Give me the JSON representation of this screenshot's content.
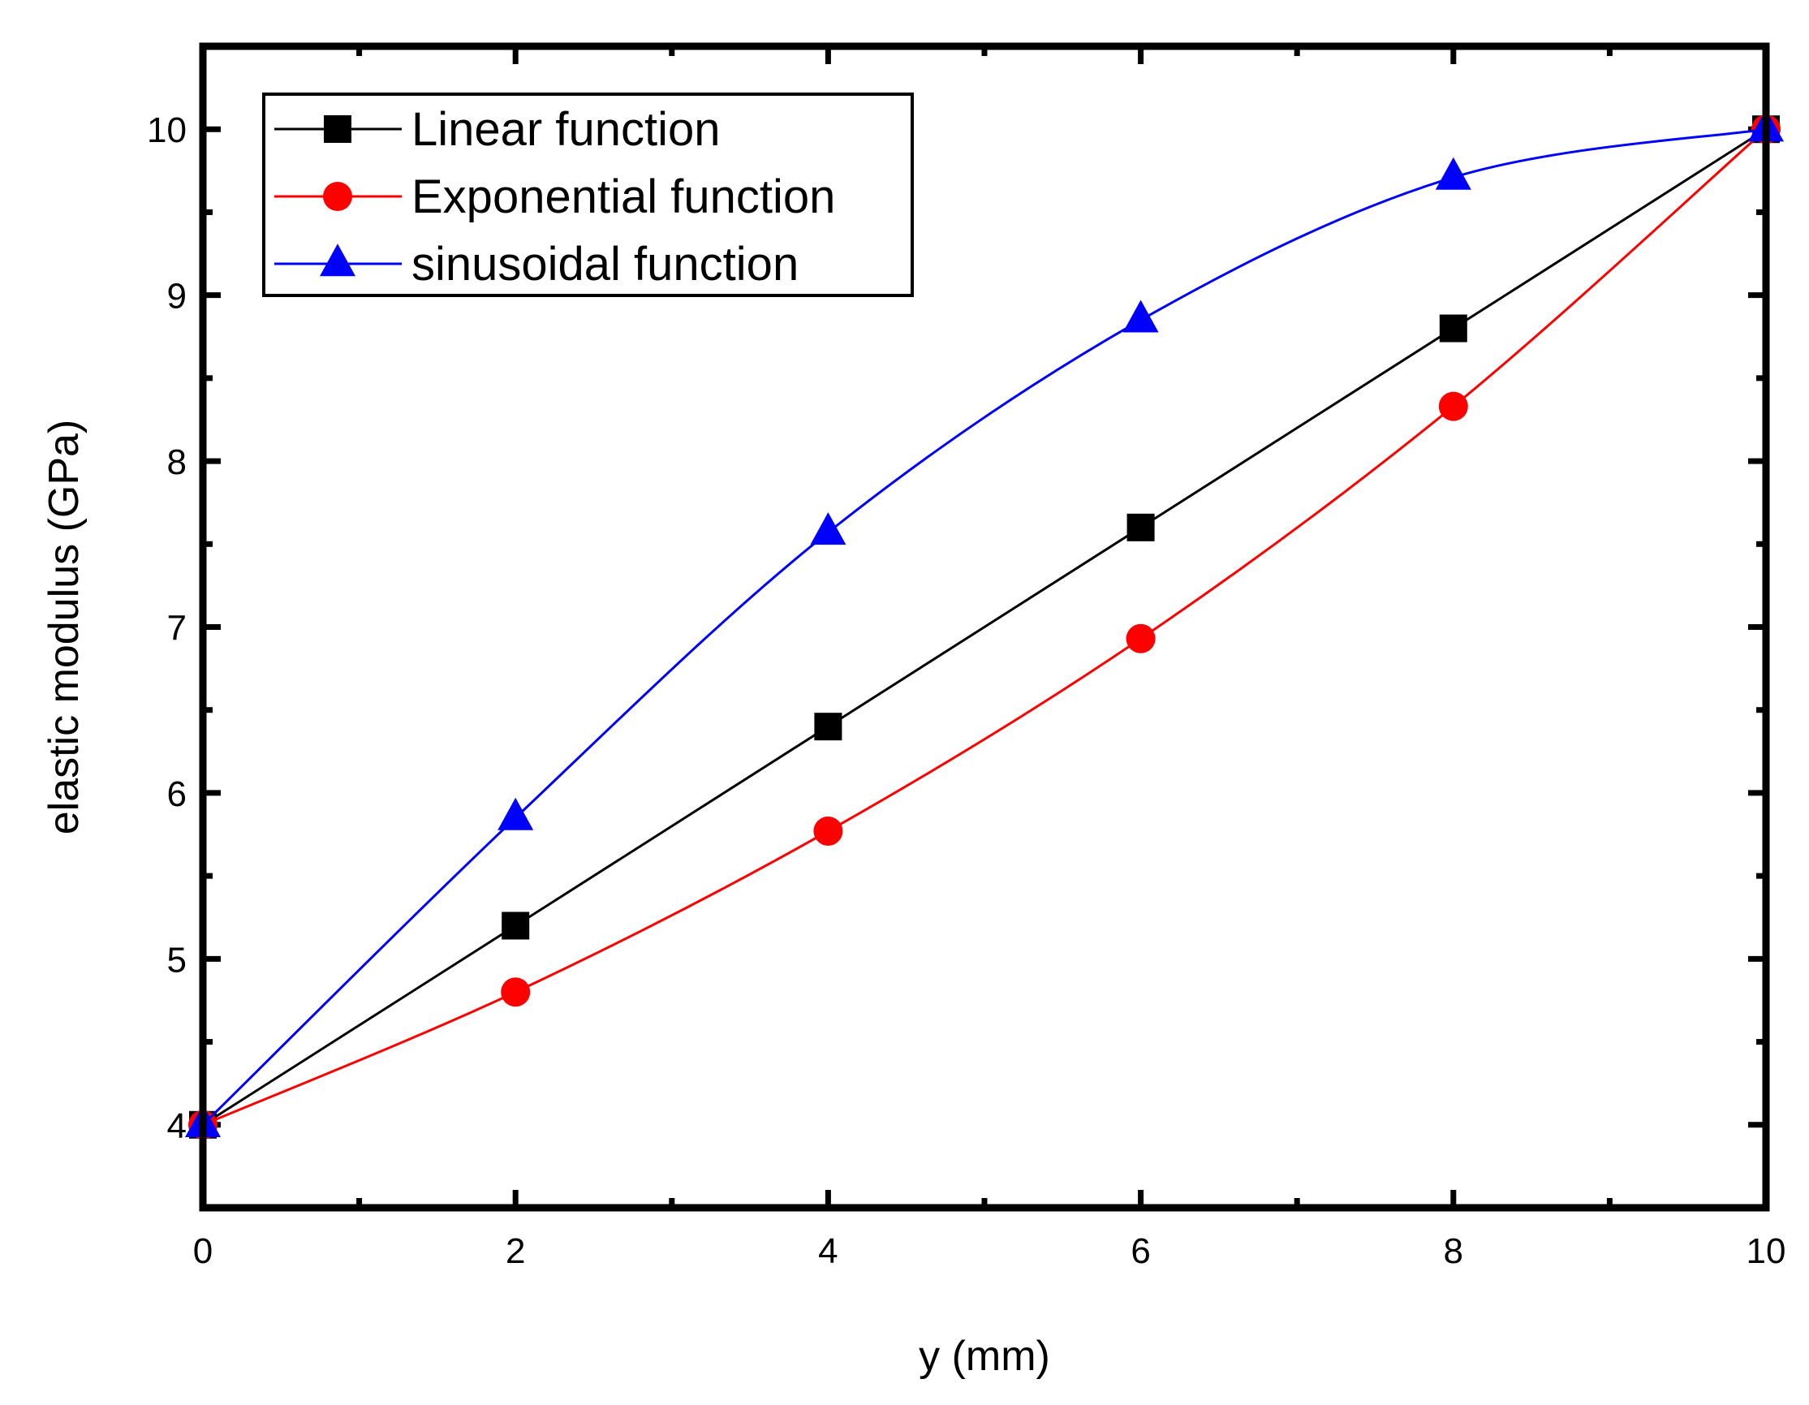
{
  "chart_data": {
    "type": "line",
    "title": "",
    "xlabel": "y (mm)",
    "ylabel": "elastic modulus (GPa)",
    "xlim": [
      0,
      10
    ],
    "ylim": [
      3.5,
      10.5
    ],
    "xticks": [
      0,
      2,
      4,
      6,
      8,
      10
    ],
    "yticks": [
      4,
      5,
      6,
      7,
      8,
      9,
      10
    ],
    "x_minor_step": 1,
    "y_minor_step": 0.5,
    "grid": false,
    "legend_position": "top-left",
    "x": [
      0,
      2,
      4,
      6,
      8,
      10
    ],
    "series": [
      {
        "name": "Linear function",
        "marker": "square",
        "color": "#000000",
        "values": [
          4.0,
          5.2,
          6.4,
          7.6,
          8.8,
          10.0
        ]
      },
      {
        "name": "Exponential function",
        "marker": "circle",
        "color": "#ff0000",
        "values": [
          4.0,
          4.8,
          5.77,
          6.93,
          8.33,
          10.0
        ]
      },
      {
        "name": "sinusoidal function",
        "marker": "triangle",
        "color": "#0000ff",
        "values": [
          4.0,
          5.85,
          7.57,
          8.85,
          9.71,
          10.0
        ]
      }
    ]
  }
}
